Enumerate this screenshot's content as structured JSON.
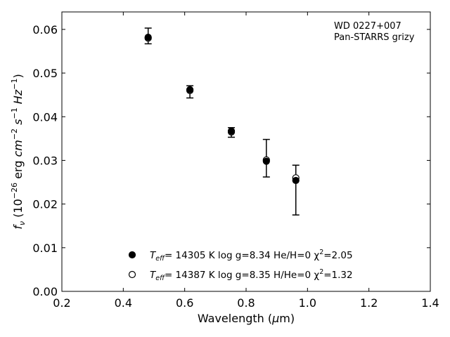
{
  "chart_data": {
    "type": "scatter",
    "title": "",
    "xlabel": "Wavelength (μm)",
    "ylabel": "f_ν (10^-26 erg cm^-2 s^-1 Hz^-1)",
    "xlim": [
      0.2,
      1.4
    ],
    "ylim": [
      0.0,
      0.064
    ],
    "grid": false,
    "legend_position": "bottom-center",
    "x_ticks": [
      "0.2",
      "0.4",
      "0.6",
      "0.8",
      "1.0",
      "1.2",
      "1.4"
    ],
    "y_ticks": [
      "0.00",
      "0.01",
      "0.02",
      "0.03",
      "0.04",
      "0.05",
      "0.06"
    ],
    "x_tick_values": [
      0.2,
      0.4,
      0.6,
      0.8,
      1.0,
      1.2,
      1.4
    ],
    "y_tick_values": [
      0.0,
      0.01,
      0.02,
      0.03,
      0.04,
      0.05,
      0.06
    ],
    "annotation": {
      "line1": "WD 0227+007",
      "line2": "Pan-STARRS grizy"
    },
    "observed": {
      "x": [
        0.481,
        0.617,
        0.752,
        0.866,
        0.962
      ],
      "y": [
        0.0585,
        0.0457,
        0.0364,
        0.0305,
        0.0232
      ],
      "yerr": [
        0.0018,
        0.0014,
        0.0011,
        0.0043,
        0.0057
      ]
    },
    "series": [
      {
        "marker": "filled",
        "color": "#000000",
        "x": [
          0.481,
          0.617,
          0.752,
          0.866,
          0.962
        ],
        "y": [
          0.0582,
          0.0462,
          0.0367,
          0.0298,
          0.0254
        ]
      },
      {
        "marker": "open",
        "color": "#000000",
        "x": [
          0.481,
          0.617,
          0.752,
          0.866,
          0.962
        ],
        "y": [
          0.058,
          0.046,
          0.0365,
          0.0301,
          0.026
        ]
      }
    ],
    "legend": [
      {
        "marker": "filled",
        "teff_sym": "T",
        "teff_sub": "eff",
        "rest": "= 14305 K  log g=8.34  He/H=0  χ",
        "sup": "2",
        "chi": "=2.05"
      },
      {
        "marker": "open",
        "teff_sym": "T",
        "teff_sub": "eff",
        "rest": "= 14387 K  log g=8.35  H/He=0  χ",
        "sup": "2",
        "chi": "=1.32"
      }
    ]
  }
}
